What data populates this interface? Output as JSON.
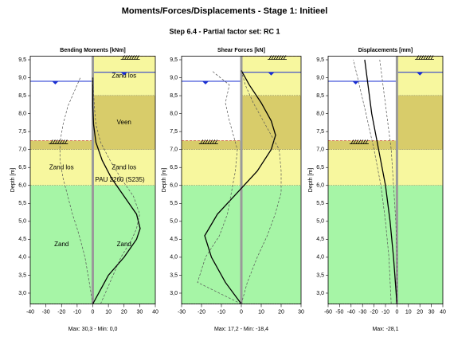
{
  "title": "Moments/Forces/Displacements - Stage 1: Initieel",
  "subtitle": "Step 6.4 - Partial factor set: RC 1",
  "depth_axis": {
    "label": "Depth [m]",
    "ylim": [
      2.7,
      9.6
    ],
    "yticks": [
      {
        "value": 3.0,
        "label": "3,0"
      },
      {
        "value": 3.5,
        "label": "3,5"
      },
      {
        "value": 4.0,
        "label": "4,0"
      },
      {
        "value": 4.5,
        "label": "4,5"
      },
      {
        "value": 5.0,
        "label": "5,0"
      },
      {
        "value": 5.5,
        "label": "5,5"
      },
      {
        "value": 6.0,
        "label": "6,0"
      },
      {
        "value": 6.5,
        "label": "6,5"
      },
      {
        "value": 7.0,
        "label": "7,0"
      },
      {
        "value": 7.5,
        "label": "7,5"
      },
      {
        "value": 8.0,
        "label": "8,0"
      },
      {
        "value": 8.5,
        "label": "8,5"
      },
      {
        "value": 9.0,
        "label": "9,0"
      },
      {
        "value": 9.5,
        "label": "9,5"
      }
    ]
  },
  "wall_label": "PAU 2260 (S235)",
  "water_levels": {
    "left": 8.9,
    "right": 9.15
  },
  "surface": {
    "left": 7.25,
    "right": 9.6
  },
  "layers": [
    {
      "side": "right",
      "top": 9.6,
      "bottom": 8.5,
      "color": "#f7f79e",
      "label": "Zand los"
    },
    {
      "side": "right",
      "top": 8.5,
      "bottom": 7.0,
      "color": "#d8cc6a",
      "label": "Veen"
    },
    {
      "side": "left",
      "top": 7.25,
      "bottom": 7.0,
      "color": "#d8cc6a"
    },
    {
      "side": "left",
      "top": 7.0,
      "bottom": 6.0,
      "color": "#f7f79e",
      "label": "Zand los"
    },
    {
      "side": "right",
      "top": 7.0,
      "bottom": 6.0,
      "color": "#f7f79e",
      "label": "Zand los"
    },
    {
      "side": "left",
      "top": 6.0,
      "bottom": 2.7,
      "color": "#a6f5a6",
      "label": "Zand"
    },
    {
      "side": "right",
      "top": 6.0,
      "bottom": 2.7,
      "color": "#a6f5a6",
      "label": "Zand"
    }
  ],
  "chart_data": [
    {
      "type": "line",
      "title": "Bending Moments [kNm]",
      "footer": "Max: 30,3 - Min: 0,0",
      "xlim": [
        -40,
        40
      ],
      "xticks": [
        -40,
        -30,
        -20,
        -10,
        0,
        10,
        20,
        30,
        40
      ],
      "depth": [
        2.7,
        3.5,
        4.0,
        4.5,
        4.8,
        5.2,
        5.7,
        6.2,
        6.7,
        7.2,
        7.7,
        8.2,
        9.0
      ],
      "series": [
        {
          "style": "solid",
          "color": "#000000",
          "values": [
            0,
            10,
            20,
            28,
            30.3,
            28,
            20,
            12,
            6,
            2,
            0.5,
            0,
            0
          ]
        },
        {
          "style": "dashed",
          "color": "#555555",
          "values": [
            5,
            13,
            18,
            25,
            28,
            30,
            26,
            18,
            11,
            5,
            2,
            1,
            0
          ]
        },
        {
          "style": "dashed",
          "color": "#555555",
          "values": [
            0,
            -3,
            -5,
            -8,
            -10,
            -13,
            -16,
            -19,
            -21,
            -21,
            -19,
            -16,
            -8
          ]
        }
      ]
    },
    {
      "type": "line",
      "title": "Shear Forces [kN]",
      "footer": "Max: 17,2 - Min: -18,4",
      "xlim": [
        -30,
        30
      ],
      "xticks": [
        -30,
        -20,
        -10,
        0,
        10,
        20,
        30
      ],
      "depth": [
        2.7,
        3.3,
        4.0,
        4.6,
        5.2,
        5.8,
        6.4,
        7.0,
        7.4,
        7.8,
        8.3,
        8.8,
        9.2
      ],
      "series": [
        {
          "style": "solid",
          "color": "#000000",
          "values": [
            0,
            -8,
            -15,
            -18.4,
            -12,
            -2,
            8,
            15,
            17.2,
            15,
            10,
            4,
            0
          ]
        },
        {
          "style": "dashed",
          "color": "#555555",
          "values": [
            0,
            -22,
            -18,
            -11,
            -7,
            -5,
            -3,
            -2,
            -4,
            -6,
            -8,
            -6,
            -15
          ]
        },
        {
          "style": "dashed",
          "color": "#555555",
          "values": [
            0,
            3,
            8,
            13,
            17,
            20,
            20,
            19,
            15,
            11,
            6,
            2,
            0
          ]
        }
      ]
    },
    {
      "type": "line",
      "title": "Displacements [mm]",
      "footer": "Max: -28,1",
      "xlim": [
        -60,
        40
      ],
      "xticks": [
        -60,
        -50,
        -40,
        -30,
        -20,
        -10,
        0,
        10,
        20,
        30,
        40
      ],
      "depth": [
        2.7,
        4.0,
        5.0,
        6.0,
        7.0,
        8.0,
        9.5
      ],
      "series": [
        {
          "style": "solid",
          "color": "#000000",
          "values": [
            0,
            -3,
            -6,
            -10,
            -16,
            -22,
            -28.1
          ]
        },
        {
          "style": "dashed",
          "color": "#555555",
          "values": [
            -5,
            -7,
            -10,
            -14,
            -20,
            -27,
            -38
          ]
        },
        {
          "style": "dashed",
          "color": "#555555",
          "values": [
            0,
            0,
            -1,
            -3,
            -5,
            -9,
            -15
          ]
        }
      ]
    }
  ]
}
